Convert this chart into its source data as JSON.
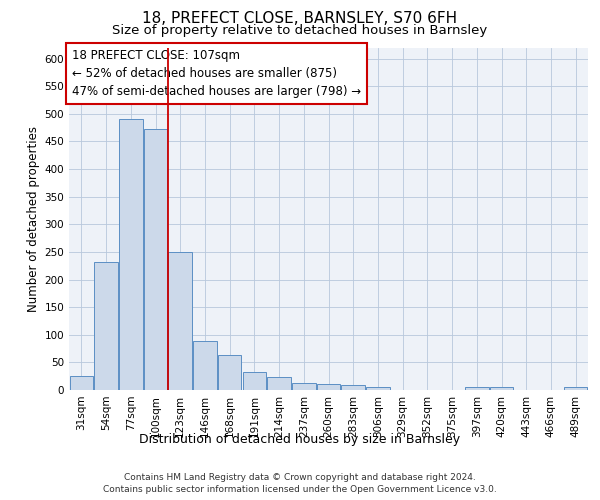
{
  "title1": "18, PREFECT CLOSE, BARNSLEY, S70 6FH",
  "title2": "Size of property relative to detached houses in Barnsley",
  "xlabel": "Distribution of detached houses by size in Barnsley",
  "ylabel": "Number of detached properties",
  "categories": [
    "31sqm",
    "54sqm",
    "77sqm",
    "100sqm",
    "123sqm",
    "146sqm",
    "168sqm",
    "191sqm",
    "214sqm",
    "237sqm",
    "260sqm",
    "283sqm",
    "306sqm",
    "329sqm",
    "352sqm",
    "375sqm",
    "397sqm",
    "420sqm",
    "443sqm",
    "466sqm",
    "489sqm"
  ],
  "values": [
    26,
    232,
    490,
    472,
    250,
    88,
    63,
    32,
    23,
    13,
    11,
    9,
    5,
    0,
    0,
    0,
    6,
    6,
    0,
    0,
    6
  ],
  "bar_color": "#ccd9ea",
  "bar_edge_color": "#5b8fc4",
  "vline_x": 3.5,
  "vline_color": "#cc0000",
  "annotation_text": "18 PREFECT CLOSE: 107sqm\n← 52% of detached houses are smaller (875)\n47% of semi-detached houses are larger (798) →",
  "annotation_box_color": "#ffffff",
  "annotation_box_edge": "#cc0000",
  "ylim": [
    0,
    620
  ],
  "yticks": [
    0,
    50,
    100,
    150,
    200,
    250,
    300,
    350,
    400,
    450,
    500,
    550,
    600
  ],
  "footer": "Contains HM Land Registry data © Crown copyright and database right 2024.\nContains public sector information licensed under the Open Government Licence v3.0.",
  "plot_bg_color": "#eef2f8",
  "title1_fontsize": 11,
  "title2_fontsize": 9.5,
  "xlabel_fontsize": 9,
  "ylabel_fontsize": 8.5,
  "tick_fontsize": 7.5,
  "annotation_fontsize": 8.5,
  "footer_fontsize": 6.5
}
